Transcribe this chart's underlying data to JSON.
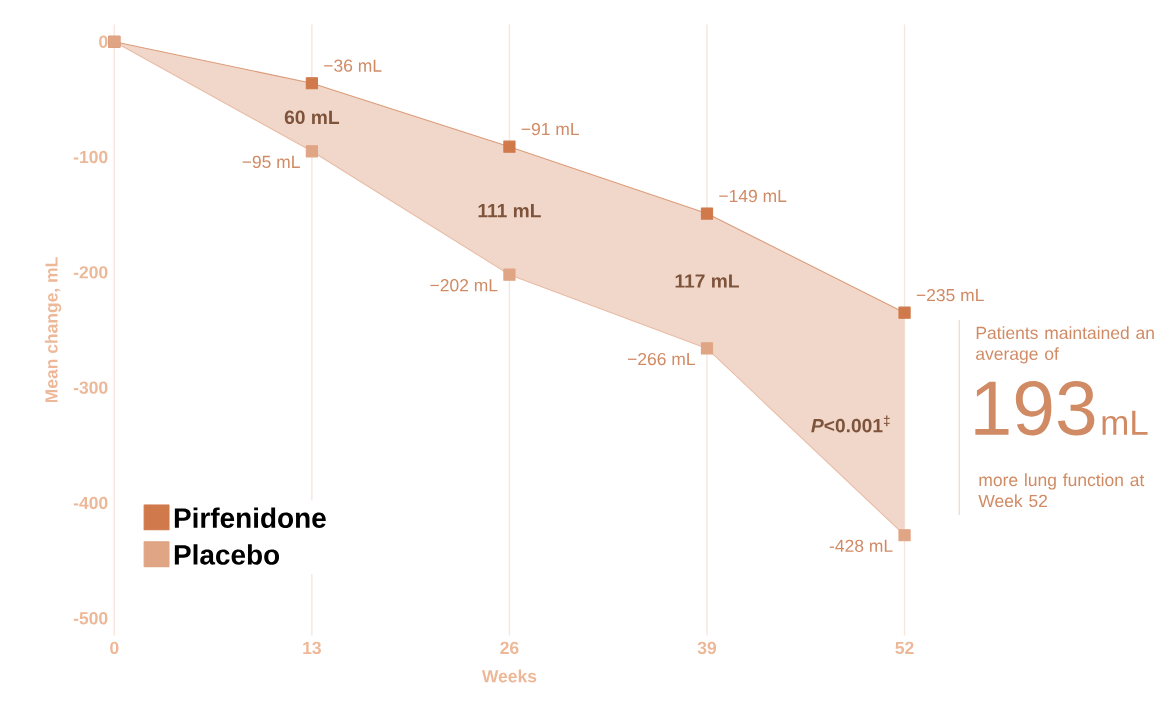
{
  "chart_data": {
    "type": "line",
    "xlabel": "Weeks",
    "ylabel": "Mean change, mL",
    "x": [
      0,
      13,
      26,
      39,
      52
    ],
    "series": [
      {
        "name": "Pirfenidone",
        "color": "#d07a4c",
        "values": [
          0,
          -36,
          -91,
          -149,
          -235
        ],
        "lower": [
          0,
          -95,
          -202,
          -266,
          -428
        ],
        "upper": [
          0,
          -36,
          -91,
          -149,
          -235
        ],
        "value_labels": [
          null,
          "−36 mL",
          "−91 mL",
          "−149 mL",
          "−235 mL"
        ]
      },
      {
        "name": "Placebo",
        "color": "#e0a585",
        "values": [
          0,
          -95,
          -202,
          -266,
          -428
        ],
        "value_labels": [
          null,
          "−95 mL",
          "−202 mL",
          "−266 mL",
          "-428 mL"
        ]
      }
    ],
    "annotations": [
      "60 mL",
      "111 mL",
      "117 mL",
      "*P*<0.001$^{‡}$",
      "Patients maintained an average of",
      "193",
      "mL",
      "more lung function at Week 52"
    ],
    "xlim": [
      0,
      52
    ],
    "ylim": [
      -515,
      15
    ],
    "xticks": [
      0,
      13,
      26,
      39,
      52
    ],
    "yticks": [
      -500,
      -400,
      -300,
      -200,
      -100,
      0
    ],
    "grid": "x",
    "legend": "bottom left",
    "marker": "square"
  }
}
